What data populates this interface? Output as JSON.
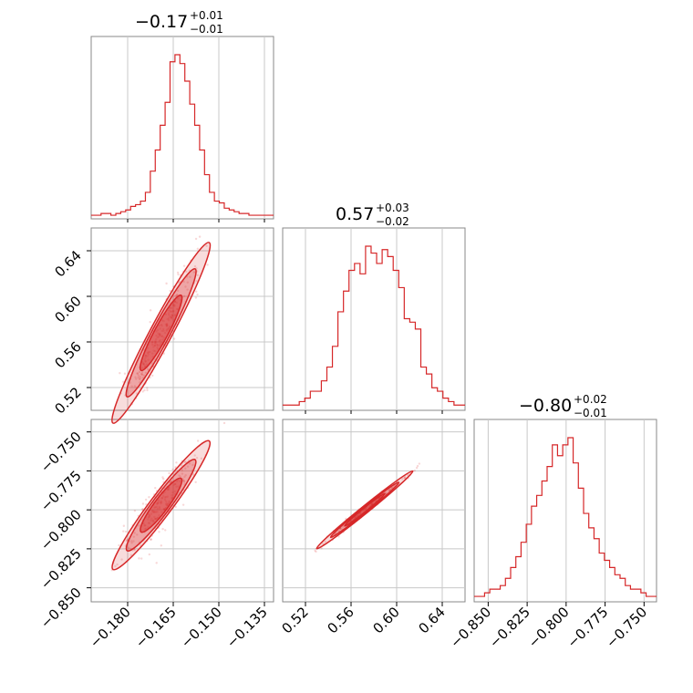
{
  "chart_data": {
    "type": "corner",
    "color": "#d62728",
    "grid": true,
    "parameters": [
      {
        "title_value": "−0.17",
        "title_plus": "+0.01",
        "title_minus": "−0.01",
        "range": [
          -0.192,
          -0.132
        ],
        "ticks": [
          -0.18,
          -0.165,
          -0.15,
          -0.135
        ],
        "tick_labels": [
          "−0.180",
          "−0.165",
          "−0.150",
          "−0.135"
        ]
      },
      {
        "title_value": "0.57",
        "title_plus": "+0.03",
        "title_minus": "−0.02",
        "range": [
          0.5,
          0.66
        ],
        "ticks": [
          0.52,
          0.56,
          0.6,
          0.64
        ],
        "tick_labels": [
          "0.52",
          "0.56",
          "0.60",
          "0.64"
        ]
      },
      {
        "title_value": "−0.80",
        "title_plus": "+0.02",
        "title_minus": "−0.01",
        "range": [
          -0.859,
          -0.742
        ],
        "ticks": [
          -0.85,
          -0.825,
          -0.8,
          -0.775,
          -0.75
        ],
        "tick_labels": [
          "−0.850",
          "−0.825",
          "−0.800",
          "−0.775",
          "−0.750"
        ]
      }
    ],
    "histograms": [
      {
        "edges_range": [
          -0.192,
          -0.132
        ],
        "counts": [
          1,
          1,
          2,
          2,
          1,
          2,
          3,
          4,
          6,
          7,
          9,
          14,
          26,
          38,
          52,
          65,
          88,
          92,
          87,
          77,
          64,
          52,
          38,
          24,
          14,
          9,
          8,
          5,
          4,
          3,
          2,
          2,
          1,
          1,
          1,
          1,
          1
        ]
      },
      {
        "edges_range": [
          0.5,
          0.66
        ],
        "counts": [
          1,
          1,
          1,
          2,
          3,
          5,
          5,
          8,
          12,
          18,
          28,
          34,
          40,
          42,
          39,
          47,
          45,
          42,
          46,
          44,
          40,
          35,
          26,
          25,
          23,
          12,
          10,
          6,
          5,
          3,
          2,
          1,
          1
        ]
      },
      {
        "edges_range": [
          -0.859,
          -0.742
        ],
        "counts": [
          1,
          1,
          2,
          3,
          3,
          4,
          6,
          9,
          12,
          16,
          21,
          26,
          29,
          33,
          37,
          43,
          40,
          43,
          45,
          38,
          31,
          24,
          20,
          17,
          13,
          11,
          9,
          7,
          6,
          4,
          3,
          3,
          2,
          1,
          1
        ]
      }
    ],
    "scatter_2d": [
      {
        "x_param": 0,
        "y_param": 1,
        "center": [
          -0.169,
          0.568
        ],
        "slope": 5.0
      },
      {
        "x_param": 0,
        "y_param": 2,
        "center": [
          -0.169,
          -0.797
        ],
        "slope": 2.6
      },
      {
        "x_param": 1,
        "y_param": 2,
        "center": [
          0.572,
          -0.8
        ],
        "slope": 0.59
      }
    ]
  }
}
